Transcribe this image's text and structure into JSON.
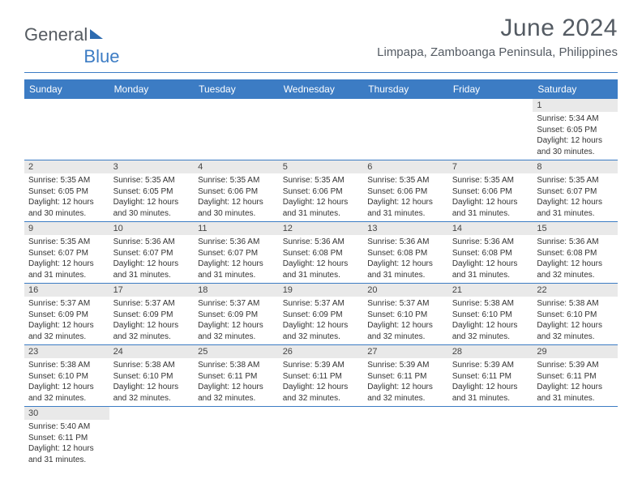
{
  "logo": {
    "part1": "General",
    "part2": "Blue"
  },
  "title": "June 2024",
  "location": "Limpapa, Zamboanga Peninsula, Philippines",
  "colors": {
    "header_bg": "#3c7cc4",
    "header_fg": "#ffffff",
    "day_bg": "#e9e9e9",
    "rule": "#3c7cc4",
    "title_fg": "#545b63"
  },
  "day_headers": [
    "Sunday",
    "Monday",
    "Tuesday",
    "Wednesday",
    "Thursday",
    "Friday",
    "Saturday"
  ],
  "weeks": [
    [
      {
        "n": "",
        "empty": true
      },
      {
        "n": "",
        "empty": true
      },
      {
        "n": "",
        "empty": true
      },
      {
        "n": "",
        "empty": true
      },
      {
        "n": "",
        "empty": true
      },
      {
        "n": "",
        "empty": true
      },
      {
        "n": "1",
        "sunrise": "5:34 AM",
        "sunset": "6:05 PM",
        "daylight": "12 hours and 30 minutes."
      }
    ],
    [
      {
        "n": "2",
        "sunrise": "5:35 AM",
        "sunset": "6:05 PM",
        "daylight": "12 hours and 30 minutes."
      },
      {
        "n": "3",
        "sunrise": "5:35 AM",
        "sunset": "6:05 PM",
        "daylight": "12 hours and 30 minutes."
      },
      {
        "n": "4",
        "sunrise": "5:35 AM",
        "sunset": "6:06 PM",
        "daylight": "12 hours and 30 minutes."
      },
      {
        "n": "5",
        "sunrise": "5:35 AM",
        "sunset": "6:06 PM",
        "daylight": "12 hours and 31 minutes."
      },
      {
        "n": "6",
        "sunrise": "5:35 AM",
        "sunset": "6:06 PM",
        "daylight": "12 hours and 31 minutes."
      },
      {
        "n": "7",
        "sunrise": "5:35 AM",
        "sunset": "6:06 PM",
        "daylight": "12 hours and 31 minutes."
      },
      {
        "n": "8",
        "sunrise": "5:35 AM",
        "sunset": "6:07 PM",
        "daylight": "12 hours and 31 minutes."
      }
    ],
    [
      {
        "n": "9",
        "sunrise": "5:35 AM",
        "sunset": "6:07 PM",
        "daylight": "12 hours and 31 minutes."
      },
      {
        "n": "10",
        "sunrise": "5:36 AM",
        "sunset": "6:07 PM",
        "daylight": "12 hours and 31 minutes."
      },
      {
        "n": "11",
        "sunrise": "5:36 AM",
        "sunset": "6:07 PM",
        "daylight": "12 hours and 31 minutes."
      },
      {
        "n": "12",
        "sunrise": "5:36 AM",
        "sunset": "6:08 PM",
        "daylight": "12 hours and 31 minutes."
      },
      {
        "n": "13",
        "sunrise": "5:36 AM",
        "sunset": "6:08 PM",
        "daylight": "12 hours and 31 minutes."
      },
      {
        "n": "14",
        "sunrise": "5:36 AM",
        "sunset": "6:08 PM",
        "daylight": "12 hours and 31 minutes."
      },
      {
        "n": "15",
        "sunrise": "5:36 AM",
        "sunset": "6:08 PM",
        "daylight": "12 hours and 32 minutes."
      }
    ],
    [
      {
        "n": "16",
        "sunrise": "5:37 AM",
        "sunset": "6:09 PM",
        "daylight": "12 hours and 32 minutes."
      },
      {
        "n": "17",
        "sunrise": "5:37 AM",
        "sunset": "6:09 PM",
        "daylight": "12 hours and 32 minutes."
      },
      {
        "n": "18",
        "sunrise": "5:37 AM",
        "sunset": "6:09 PM",
        "daylight": "12 hours and 32 minutes."
      },
      {
        "n": "19",
        "sunrise": "5:37 AM",
        "sunset": "6:09 PM",
        "daylight": "12 hours and 32 minutes."
      },
      {
        "n": "20",
        "sunrise": "5:37 AM",
        "sunset": "6:10 PM",
        "daylight": "12 hours and 32 minutes."
      },
      {
        "n": "21",
        "sunrise": "5:38 AM",
        "sunset": "6:10 PM",
        "daylight": "12 hours and 32 minutes."
      },
      {
        "n": "22",
        "sunrise": "5:38 AM",
        "sunset": "6:10 PM",
        "daylight": "12 hours and 32 minutes."
      }
    ],
    [
      {
        "n": "23",
        "sunrise": "5:38 AM",
        "sunset": "6:10 PM",
        "daylight": "12 hours and 32 minutes."
      },
      {
        "n": "24",
        "sunrise": "5:38 AM",
        "sunset": "6:10 PM",
        "daylight": "12 hours and 32 minutes."
      },
      {
        "n": "25",
        "sunrise": "5:38 AM",
        "sunset": "6:11 PM",
        "daylight": "12 hours and 32 minutes."
      },
      {
        "n": "26",
        "sunrise": "5:39 AM",
        "sunset": "6:11 PM",
        "daylight": "12 hours and 32 minutes."
      },
      {
        "n": "27",
        "sunrise": "5:39 AM",
        "sunset": "6:11 PM",
        "daylight": "12 hours and 32 minutes."
      },
      {
        "n": "28",
        "sunrise": "5:39 AM",
        "sunset": "6:11 PM",
        "daylight": "12 hours and 31 minutes."
      },
      {
        "n": "29",
        "sunrise": "5:39 AM",
        "sunset": "6:11 PM",
        "daylight": "12 hours and 31 minutes."
      }
    ],
    [
      {
        "n": "30",
        "sunrise": "5:40 AM",
        "sunset": "6:11 PM",
        "daylight": "12 hours and 31 minutes."
      },
      {
        "n": "",
        "empty": true
      },
      {
        "n": "",
        "empty": true
      },
      {
        "n": "",
        "empty": true
      },
      {
        "n": "",
        "empty": true
      },
      {
        "n": "",
        "empty": true
      },
      {
        "n": "",
        "empty": true
      }
    ]
  ],
  "labels": {
    "sunrise": "Sunrise:",
    "sunset": "Sunset:",
    "daylight": "Daylight:"
  }
}
